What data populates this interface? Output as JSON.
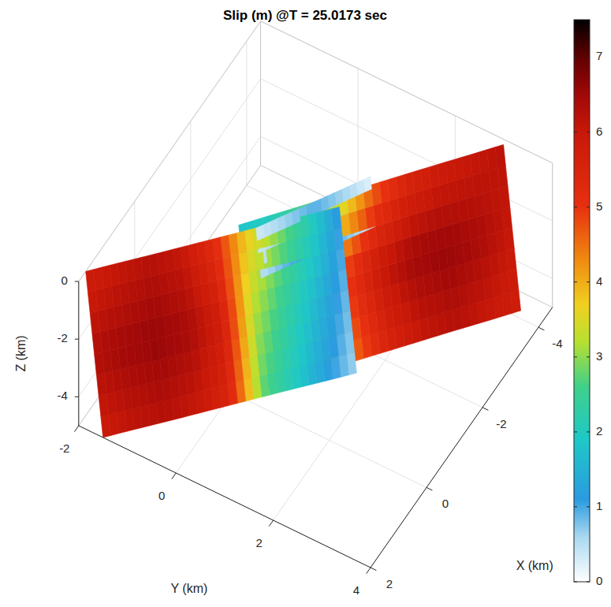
{
  "chart_data": {
    "type": "surface",
    "title": "Slip (m) @T = 25.0173 sec",
    "x_label": "X (km)",
    "y_label": "Y (km)",
    "z_label": "Z (km)",
    "xlim": [
      -4.5,
      2
    ],
    "xticks": [
      -4,
      -2,
      0,
      2
    ],
    "ylim": [
      -2,
      4
    ],
    "yticks": [
      -2,
      0,
      2,
      4
    ],
    "zlim": [
      -5,
      0
    ],
    "zticks": [
      -4,
      -2,
      0
    ],
    "grid": true,
    "colorbar": {
      "range": [
        0,
        7.5
      ],
      "ticks": [
        0,
        1,
        2,
        3,
        4,
        5,
        6,
        7
      ]
    },
    "surfaces": [
      {
        "x_top": [
          1.75,
          1.31,
          0.88,
          0.44,
          0,
          -0.44,
          -0.88,
          -1.31,
          -1.75
        ],
        "y_top": [
          -2,
          -1.6,
          -1.2,
          -0.8,
          -0.4,
          0,
          0.4,
          0.8,
          1.2
        ],
        "x_bottom": [
          2,
          1.56,
          1.13,
          0.69,
          0.25,
          -0.19,
          -0.63,
          -1.06,
          -1.5
        ],
        "y_bottom": [
          -1.5,
          -1.1,
          -0.7,
          -0.3,
          0.1,
          0.5,
          0.9,
          1.3,
          1.7
        ],
        "z": [
          0,
          -2.5,
          -5
        ],
        "slip": [
          [
            5.8,
            6.0,
            6.2,
            6.0,
            5.2,
            3.8,
            3.0,
            2.2,
            1.0
          ],
          [
            6.3,
            6.5,
            6.6,
            6.4,
            5.8,
            3.2,
            2.4,
            1.6,
            0.8
          ],
          [
            5.9,
            6.1,
            6.2,
            6.0,
            5.5,
            2.8,
            2.0,
            1.2,
            0.6
          ]
        ]
      },
      {
        "x_top": [
          -0.5,
          -0.99,
          -1.48,
          -1.96,
          -2.45,
          -2.94,
          -3.43,
          -3.91,
          -4.4
        ],
        "y_top": [
          -0.15,
          0.25,
          0.65,
          1.05,
          1.45,
          1.85,
          2.25,
          2.65,
          3.05
        ],
        "x_bottom": [
          -0.25,
          -0.74,
          -1.23,
          -1.71,
          -2.2,
          -2.69,
          -3.18,
          -3.66,
          -4.15
        ],
        "y_bottom": [
          0.35,
          0.75,
          1.15,
          1.55,
          1.95,
          2.35,
          2.75,
          3.15,
          3.55
        ],
        "z": [
          0,
          -2.5,
          -5
        ],
        "slip": [
          [
            1.8,
            2.0,
            2.6,
            3.2,
            4.5,
            5.4,
            5.8,
            6.0,
            6.2
          ],
          [
            2.0,
            2.4,
            3.5,
            5.0,
            6.0,
            6.5,
            6.6,
            6.4,
            6.0
          ],
          [
            1.5,
            2.0,
            3.0,
            4.5,
            5.5,
            6.0,
            6.2,
            6.0,
            5.8
          ]
        ]
      },
      {
        "x_top": [
          -0.6,
          -1.1,
          -1.6,
          -2.1,
          -2.6
        ],
        "y_top": [
          0.15,
          0.45,
          0.75,
          1.05,
          1.35
        ],
        "x_bottom": [
          -0.52,
          -1.02,
          -1.52,
          -2.02,
          -2.52
        ],
        "y_bottom": [
          0.3,
          0.6,
          0.9,
          1.2,
          1.5
        ],
        "z": [
          0,
          -1.5
        ],
        "slip": [
          [
            0.3,
            0.6,
            0.9,
            0.6,
            0.2
          ],
          [
            0.5,
            1.0,
            1.2,
            0.8,
            0.3
          ]
        ]
      }
    ]
  }
}
